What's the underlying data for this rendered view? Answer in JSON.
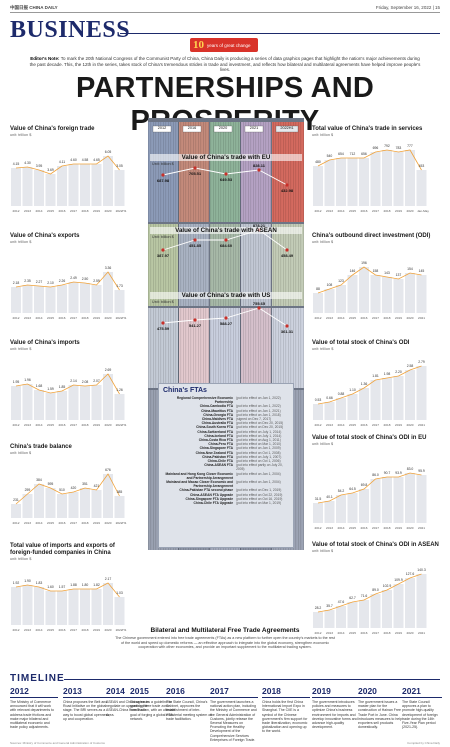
{
  "masthead": {
    "left": "中国日报 CHINA DAILY",
    "right": "Friday, September 16, 2022 | 15"
  },
  "section": "BUSINESS",
  "badge": {
    "num": "10",
    "text": "years of great change"
  },
  "editors_note": {
    "label": "Editor's Note:",
    "text": "To mark the 20th National Congress of the Communist Party of China, China Daily is producing a series of data graphics pages that highlight the nation's major achievements during the past decade. This, the 12th in the series, takes stock of China's tremendous strides in trade and investment, and reflects how bilateral and multilateral agreements have helped improve people's lives."
  },
  "headline": "PARTNERSHIPS AND PROSPERITY",
  "colors": {
    "navy": "#1d2a6b",
    "orange": "#f0a23a",
    "blue": "#3d5aa8",
    "red": "#c8302a"
  },
  "charts": {
    "foreign_trade": {
      "title": "Value of China's foreign trade",
      "unit": "unit: trillion $"
    },
    "exports": {
      "title": "Value of China's exports",
      "unit": "unit: trillion $"
    },
    "imports": {
      "title": "Value of China's imports",
      "unit": "unit: trillion $"
    },
    "balance": {
      "title": "China's trade balance",
      "unit": "unit: billion $"
    },
    "ffe": {
      "title": "Total value of imports and exports of foreign-funded companies in China",
      "unit": "unit: trillion $"
    },
    "services": {
      "title": "Total value of China's trade in services",
      "unit": "unit: billion $"
    },
    "odi": {
      "title": "China's outbound direct investment (ODI)",
      "unit": "unit: billion $"
    },
    "odi_stock": {
      "title": "Value of total stock of China's ODI",
      "unit": "unit: trillion $"
    },
    "odi_eu": {
      "title": "Value of total stock of China's ODI in EU",
      "unit": "unit: billion $"
    },
    "odi_asean": {
      "title": "Value of total stock of China's ODI in ASEAN",
      "unit": "unit: billion $"
    }
  },
  "center": {
    "year_tags": [
      "2012",
      "2016",
      "2020",
      "2021",
      "2022H1"
    ],
    "eu": {
      "title": "Value of China's trade with EU",
      "unit": "Unit: billion $"
    },
    "asean": {
      "title": "Value of China's trade with ASEAN",
      "unit": "Unit: billion $"
    },
    "us": {
      "title": "Value of China's trade with US",
      "unit": "Unit: billion $"
    }
  },
  "ftas": {
    "title": "China's FTAs",
    "rows": [
      {
        "n": "Regional Comprehensive Economic Partnership",
        "s": "(put into effect on Jan 1, 2022)"
      },
      {
        "n": "China-Cambodia FTA",
        "s": "(put into effect on Jan 1, 2022)"
      },
      {
        "n": "China-Mauritius FTA",
        "s": "(put into effect on Jan 1, 2021)"
      },
      {
        "n": "China-Georgia FTA",
        "s": "(put into effect on Jan 1, 2018)"
      },
      {
        "n": "China-Maldives FTA",
        "s": "(signed on Dec 7, 2017)"
      },
      {
        "n": "China-Australia FTA",
        "s": "(put into effect on Dec 20, 2015)"
      },
      {
        "n": "China-South Korea FTA",
        "s": "(put into effect on Dec 20, 2015)"
      },
      {
        "n": "China-Switzerland FTA",
        "s": "(put into effect on July 1, 2014)"
      },
      {
        "n": "China-Iceland FTA",
        "s": "(put into effect on July 1, 2014)"
      },
      {
        "n": "China-Costa Rica FTA",
        "s": "(put into effect on Aug 1, 2011)"
      },
      {
        "n": "China-Peru FTA",
        "s": "(put into effect on Mar 1, 2010)"
      },
      {
        "n": "China-Singapore FTA",
        "s": "(put into effect on Jan 1, 2009)"
      },
      {
        "n": "China-New Zealand FTA",
        "s": "(put into effect on Oct 1, 2008)"
      },
      {
        "n": "China-Pakistan FTA",
        "s": "(put into effect on July 1, 2007)"
      },
      {
        "n": "China-Chile FTA",
        "s": "(put into effect on Oct 1, 2006)"
      },
      {
        "n": "China-ASEAN FTA",
        "s": "(put into effect partly on July 20, 2005)"
      },
      {
        "n": "Mainland and Hong Kong Closer Economic and Partnership Arrangement",
        "s": "(put into effect on Jan 1, 2004)"
      },
      {
        "n": "Mainland and Macao Closer Economic and Partnership Arrangement",
        "s": "(put into effect on Jan 1, 2004)"
      },
      {
        "n": "China-Pakistan FTA second phase",
        "s": "(put into effect on Dec 1, 2019)"
      },
      {
        "n": "China-ASEAN FTA Upgrade",
        "s": "(put into effect on Oct 22, 2019)"
      },
      {
        "n": "China-Singapore FTA Upgrade",
        "s": "(put into effect on Oct 16, 2019)"
      },
      {
        "n": "China-Chile FTA Upgrade",
        "s": "(put into effect on Mar 1, 2019)"
      }
    ]
  },
  "bilateral": {
    "title": "Bilateral and Multilateral Free Trade Agreements",
    "body": "The Chinese government entered into free trade agreements (FTAs) as a new platform to further open the country's markets to the rest of the world and speed up domestic reforms — an effective approach to integrate into the global economy, strengthen economic cooperation with other economies, and provide an important supplement to the multilateral trading system."
  },
  "timeline": {
    "title": "TIMELINE",
    "items": [
      {
        "year": "2012",
        "text": "The Ministry of Commerce announced that it will work with relevant departments to address trade frictions and make major bilateral and multilateral economic and trade policy adjustments."
      },
      {
        "year": "2013",
        "text": "China proposes the Belt and Road Initiative on the global stage. The BRI serves as a way to boost global openness, up and cooperation."
      },
      {
        "year": "2014",
        "text": "ASEAN and China agree to negotiate on upgrading the ASEAN-China Free Trade Area."
      },
      {
        "year": "2015",
        "text": "China issues a guideline to speed up free trade zone construction, with an ultimate goal of forging a global FTA network."
      },
      {
        "year": "2016",
        "text": "The State Council, China's Cabinet, approves the establishment of inter-ministerial meeting system on trade facilitation."
      },
      {
        "year": "2017",
        "text": "The government launches a national action plan, including the Ministry of Commerce and the General Administration of Customs, jointly release the Several Measures on Promoting the Healthy Development of the Comprehensive Services Enterprises of Foreign Trade."
      },
      {
        "year": "2018",
        "text": "China holds the first China International Import Expo in Shanghai. The CIIE is a symbol of the Chinese government's firm support for trade liberalization, economic globalization and opening up to the world."
      },
      {
        "year": "2019",
        "text": "The government introduces policies and measures to optimize China's business environment for imports and develop innovative forms and advance high-quality development."
      },
      {
        "year": "2020",
        "text": "The government issues a master plan for the construction of Hainan Free Trade Port in June. China introduces measures to help exporters sell products domestically."
      },
      {
        "year": "2021",
        "text": "The State Council approves a plan to promote high-quality development of foreign trade during the 14th Five-Year Plan period (2021-25)."
      }
    ]
  },
  "footer": {
    "left": "Sources: Ministry of Commerce and General Administration of Customs",
    "right": "Compiled by China Daily"
  }
}
